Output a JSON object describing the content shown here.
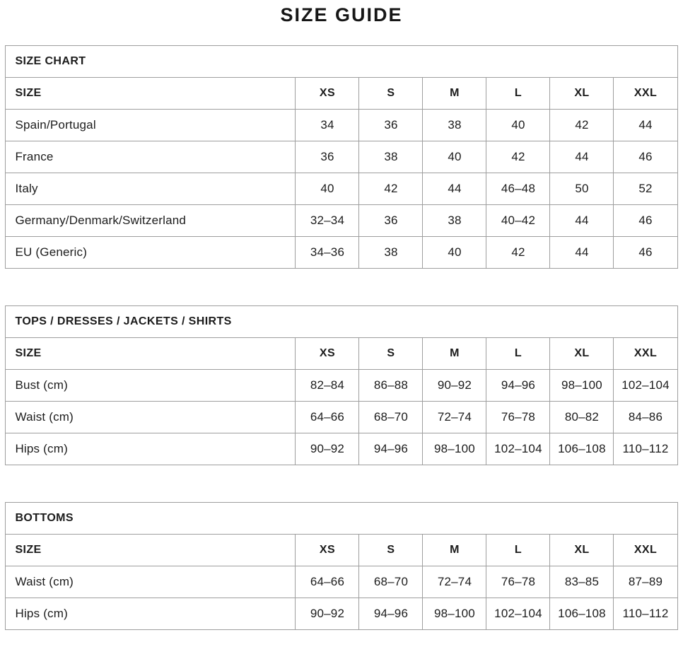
{
  "page": {
    "title": "SIZE GUIDE",
    "text_color": "#1c1c1c",
    "border_color": "#9e9e9e",
    "background_color": "#ffffff"
  },
  "tables": [
    {
      "section": "SIZE CHART",
      "size_label": "SIZE",
      "columns": [
        "XS",
        "S",
        "M",
        "L",
        "XL",
        "XXL"
      ],
      "rows": [
        {
          "label": "Spain/Portugal",
          "values": [
            "34",
            "36",
            "38",
            "40",
            "42",
            "44"
          ]
        },
        {
          "label": "France",
          "values": [
            "36",
            "38",
            "40",
            "42",
            "44",
            "46"
          ]
        },
        {
          "label": "Italy",
          "values": [
            "40",
            "42",
            "44",
            "46–48",
            "50",
            "52"
          ]
        },
        {
          "label": "Germany/Denmark/Switzerland",
          "values": [
            "32–34",
            "36",
            "38",
            "40–42",
            "44",
            "46"
          ]
        },
        {
          "label": "EU (Generic)",
          "values": [
            "34–36",
            "38",
            "40",
            "42",
            "44",
            "46"
          ]
        }
      ]
    },
    {
      "section": "TOPS / DRESSES / JACKETS / SHIRTS",
      "size_label": "SIZE",
      "columns": [
        "XS",
        "S",
        "M",
        "L",
        "XL",
        "XXL"
      ],
      "rows": [
        {
          "label": "Bust (cm)",
          "values": [
            "82–84",
            "86–88",
            "90–92",
            "94–96",
            "98–100",
            "102–104"
          ]
        },
        {
          "label": "Waist (cm)",
          "values": [
            "64–66",
            "68–70",
            "72–74",
            "76–78",
            "80–82",
            "84–86"
          ]
        },
        {
          "label": "Hips (cm)",
          "values": [
            "90–92",
            "94–96",
            "98–100",
            "102–104",
            "106–108",
            "110–112"
          ]
        }
      ]
    },
    {
      "section": "BOTTOMS",
      "size_label": "SIZE",
      "columns": [
        "XS",
        "S",
        "M",
        "L",
        "XL",
        "XXL"
      ],
      "rows": [
        {
          "label": "Waist (cm)",
          "values": [
            "64–66",
            "68–70",
            "72–74",
            "76–78",
            "83–85",
            "87–89"
          ]
        },
        {
          "label": "Hips (cm)",
          "values": [
            "90–92",
            "94–96",
            "98–100",
            "102–104",
            "106–108",
            "110–112"
          ]
        }
      ]
    }
  ]
}
